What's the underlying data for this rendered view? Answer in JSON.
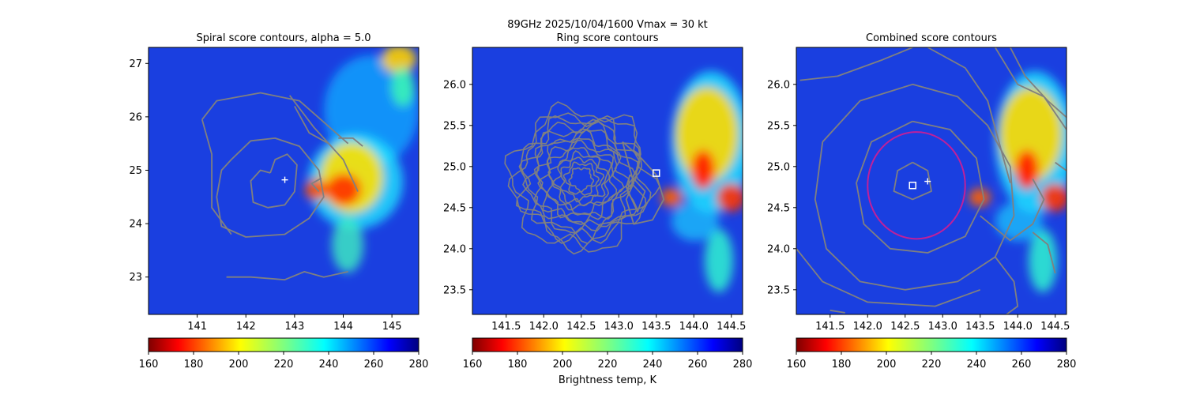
{
  "figure": {
    "suptitle": "89GHz  2025/10/04/1600    Vmax = 30 kt",
    "colorbar_label": "Brightness temp, K"
  },
  "chart_data": [
    {
      "type": "heatmap",
      "title": "Spiral score contours, alpha =  5.0",
      "xlim": [
        140.0,
        145.55
      ],
      "ylim": [
        22.3,
        27.3
      ],
      "x_ticks": [
        141,
        142,
        143,
        144,
        145
      ],
      "y_ticks": [
        23,
        24,
        25,
        26,
        27
      ],
      "x_tick_labels": [
        "141",
        "142",
        "143",
        "144",
        "145"
      ],
      "y_tick_labels": [
        "23",
        "24",
        "25",
        "26",
        "27"
      ],
      "markers": [
        {
          "symbol": "plus",
          "x": 142.8,
          "y": 24.82,
          "color": "#ffffff"
        }
      ],
      "contours": [
        {
          "color": "#808080",
          "points": [
            [
              142.5,
              24.95
            ],
            [
              142.6,
              25.2
            ],
            [
              142.85,
              25.3
            ],
            [
              143.05,
              25.1
            ],
            [
              143.0,
              24.6
            ],
            [
              142.8,
              24.35
            ],
            [
              142.45,
              24.3
            ],
            [
              142.15,
              24.4
            ],
            [
              142.1,
              24.8
            ],
            [
              142.3,
              25.0
            ],
            [
              142.5,
              24.95
            ]
          ]
        },
        {
          "color": "#808080",
          "points": [
            [
              141.7,
              25.2
            ],
            [
              142.1,
              25.55
            ],
            [
              142.6,
              25.6
            ],
            [
              143.1,
              25.45
            ],
            [
              143.5,
              25.0
            ],
            [
              143.6,
              24.5
            ],
            [
              143.3,
              24.1
            ],
            [
              142.8,
              23.8
            ],
            [
              142.0,
              23.75
            ],
            [
              141.5,
              23.95
            ],
            [
              141.4,
              24.5
            ],
            [
              141.5,
              25.0
            ],
            [
              141.7,
              25.2
            ]
          ]
        },
        {
          "color": "#808080",
          "points": [
            [
              141.1,
              25.95
            ],
            [
              141.3,
              25.3
            ],
            [
              141.3,
              24.3
            ],
            [
              141.7,
              23.8
            ]
          ]
        },
        {
          "color": "#808080",
          "points": [
            [
              141.1,
              25.95
            ],
            [
              141.4,
              26.3
            ],
            [
              142.3,
              26.45
            ],
            [
              143.1,
              26.3
            ],
            [
              143.6,
              25.9
            ],
            [
              144.1,
              25.5
            ]
          ]
        },
        {
          "color": "#808080",
          "points": [
            [
              143.0,
              26.2
            ],
            [
              143.3,
              25.7
            ],
            [
              143.7,
              25.5
            ],
            [
              144.0,
              25.2
            ],
            [
              144.3,
              24.6
            ]
          ]
        },
        {
          "color": "#808080",
          "points": [
            [
              142.9,
              26.4
            ],
            [
              143.4,
              25.8
            ],
            [
              143.8,
              25.4
            ]
          ]
        },
        {
          "color": "#808080",
          "points": [
            [
              143.9,
              25.6
            ],
            [
              144.2,
              25.6
            ],
            [
              144.4,
              25.45
            ]
          ]
        },
        {
          "color": "#808080",
          "points": [
            [
              141.6,
              23.0
            ],
            [
              142.1,
              23.0
            ],
            [
              142.8,
              22.95
            ],
            [
              143.2,
              23.1
            ],
            [
              143.6,
              23.0
            ],
            [
              144.1,
              23.1
            ]
          ]
        },
        {
          "color": "#808080",
          "points": [
            [
              143.5,
              24.6
            ],
            [
              143.35,
              24.75
            ],
            [
              143.55,
              24.85
            ]
          ]
        }
      ]
    },
    {
      "type": "heatmap",
      "title": "Ring score contours",
      "xlim": [
        141.05,
        144.65
      ],
      "ylim": [
        23.2,
        26.45
      ],
      "x_ticks": [
        141.5,
        142.0,
        142.5,
        143.0,
        143.5,
        144.0,
        144.5
      ],
      "y_ticks": [
        23.5,
        24.0,
        24.5,
        25.0,
        25.5,
        26.0
      ],
      "x_tick_labels": [
        "141.5",
        "142.0",
        "142.5",
        "143.0",
        "143.5",
        "144.0",
        "144.5"
      ],
      "y_tick_labels": [
        "23.5",
        "24.0",
        "24.5",
        "25.0",
        "25.5",
        "26.0"
      ],
      "markers": [
        {
          "symbol": "square",
          "x": 143.5,
          "y": 24.92,
          "color": "#ffffff"
        }
      ],
      "contour_disk": {
        "center": [
          142.5,
          24.85
        ],
        "radius": 0.98,
        "color": "#808080"
      },
      "contours": [
        {
          "color": "#808080",
          "points": [
            [
              143.05,
              25.3
            ],
            [
              143.3,
              25.1
            ],
            [
              143.5,
              24.9
            ],
            [
              143.6,
              24.6
            ],
            [
              143.45,
              24.35
            ],
            [
              143.2,
              24.3
            ],
            [
              143.1,
              24.6
            ],
            [
              143.2,
              24.8
            ],
            [
              143.05,
              25.3
            ]
          ]
        },
        {
          "color": "#808080",
          "points": [
            [
              143.15,
              24.9
            ],
            [
              143.35,
              24.7
            ],
            [
              143.25,
              24.45
            ],
            [
              143.1,
              24.75
            ],
            [
              143.15,
              24.9
            ]
          ]
        }
      ]
    },
    {
      "type": "heatmap",
      "title": "Combined score contours",
      "xlim": [
        141.05,
        144.65
      ],
      "ylim": [
        23.2,
        26.45
      ],
      "x_ticks": [
        141.5,
        142.0,
        142.5,
        143.0,
        143.5,
        144.0,
        144.5
      ],
      "y_ticks": [
        23.5,
        24.0,
        24.5,
        25.0,
        25.5,
        26.0
      ],
      "x_tick_labels": [
        "141.5",
        "142.0",
        "142.5",
        "143.0",
        "143.5",
        "144.0",
        "144.5"
      ],
      "y_tick_labels": [
        "23.5",
        "24.0",
        "24.5",
        "25.0",
        "25.5",
        "26.0"
      ],
      "markers": [
        {
          "symbol": "square",
          "x": 142.6,
          "y": 24.77,
          "color": "#ffffff"
        },
        {
          "symbol": "plus",
          "x": 142.8,
          "y": 24.82,
          "color": "#ffffff"
        }
      ],
      "circle": {
        "center": [
          142.65,
          24.77
        ],
        "radius": 0.65,
        "color": "#c0209a"
      },
      "contours": [
        {
          "color": "#808080",
          "points": [
            [
              142.6,
              25.05
            ],
            [
              142.8,
              24.95
            ],
            [
              142.85,
              24.7
            ],
            [
              142.6,
              24.6
            ],
            [
              142.35,
              24.7
            ],
            [
              142.4,
              24.95
            ],
            [
              142.6,
              25.05
            ]
          ]
        },
        {
          "color": "#808080",
          "points": [
            [
              142.6,
              25.55
            ],
            [
              143.1,
              25.45
            ],
            [
              143.45,
              25.1
            ],
            [
              143.55,
              24.6
            ],
            [
              143.3,
              24.15
            ],
            [
              142.8,
              23.95
            ],
            [
              142.3,
              24.0
            ],
            [
              141.95,
              24.3
            ],
            [
              141.85,
              24.8
            ],
            [
              142.05,
              25.3
            ],
            [
              142.6,
              25.55
            ]
          ]
        },
        {
          "color": "#808080",
          "points": [
            [
              141.4,
              25.3
            ],
            [
              141.9,
              25.8
            ],
            [
              142.6,
              26.0
            ],
            [
              143.2,
              25.85
            ],
            [
              143.6,
              25.5
            ],
            [
              143.9,
              25.0
            ],
            [
              143.95,
              24.4
            ],
            [
              143.7,
              23.9
            ],
            [
              143.2,
              23.6
            ],
            [
              142.5,
              23.5
            ],
            [
              141.9,
              23.6
            ],
            [
              141.45,
              24.0
            ],
            [
              141.3,
              24.6
            ],
            [
              141.4,
              25.3
            ]
          ]
        },
        {
          "color": "#808080",
          "points": [
            [
              141.05,
              24.0
            ],
            [
              141.4,
              23.6
            ],
            [
              142.0,
              23.35
            ],
            [
              142.9,
              23.3
            ],
            [
              143.5,
              23.5
            ]
          ]
        },
        {
          "color": "#808080",
          "points": [
            [
              141.1,
              26.05
            ],
            [
              141.6,
              26.1
            ],
            [
              142.2,
              26.3
            ],
            [
              142.6,
              26.45
            ]
          ]
        },
        {
          "color": "#808080",
          "points": [
            [
              142.8,
              26.45
            ],
            [
              143.3,
              26.2
            ],
            [
              143.6,
              25.8
            ],
            [
              143.75,
              25.3
            ],
            [
              143.9,
              24.8
            ]
          ]
        },
        {
          "color": "#808080",
          "points": [
            [
              143.9,
              26.45
            ],
            [
              144.1,
              26.1
            ],
            [
              144.4,
              25.8
            ],
            [
              144.65,
              25.6
            ]
          ]
        },
        {
          "color": "#808080",
          "points": [
            [
              143.7,
              26.45
            ],
            [
              144.0,
              26.0
            ],
            [
              144.35,
              25.85
            ],
            [
              144.65,
              25.45
            ]
          ]
        },
        {
          "color": "#808080",
          "points": [
            [
              144.5,
              25.05
            ],
            [
              144.65,
              24.95
            ]
          ]
        },
        {
          "color": "#808080",
          "points": [
            [
              143.5,
              24.4
            ],
            [
              143.9,
              24.1
            ],
            [
              144.2,
              24.3
            ],
            [
              144.35,
              24.6
            ],
            [
              144.2,
              24.85
            ]
          ]
        },
        {
          "color": "#808080",
          "points": [
            [
              143.7,
              23.9
            ],
            [
              143.95,
              23.6
            ],
            [
              144.0,
              23.3
            ],
            [
              143.85,
              23.2
            ]
          ]
        },
        {
          "color": "#808080",
          "points": [
            [
              144.2,
              24.2
            ],
            [
              144.4,
              24.05
            ],
            [
              144.5,
              23.7
            ]
          ]
        },
        {
          "color": "#808080",
          "points": [
            [
              141.5,
              23.25
            ],
            [
              141.7,
              23.22
            ]
          ]
        }
      ]
    }
  ],
  "colorbar": {
    "min": 160,
    "max": 280,
    "ticks": [
      160,
      180,
      200,
      220,
      240,
      260,
      280
    ],
    "tick_labels": [
      "160",
      "180",
      "200",
      "220",
      "240",
      "260",
      "280"
    ],
    "colormap": "jet_reversed"
  }
}
